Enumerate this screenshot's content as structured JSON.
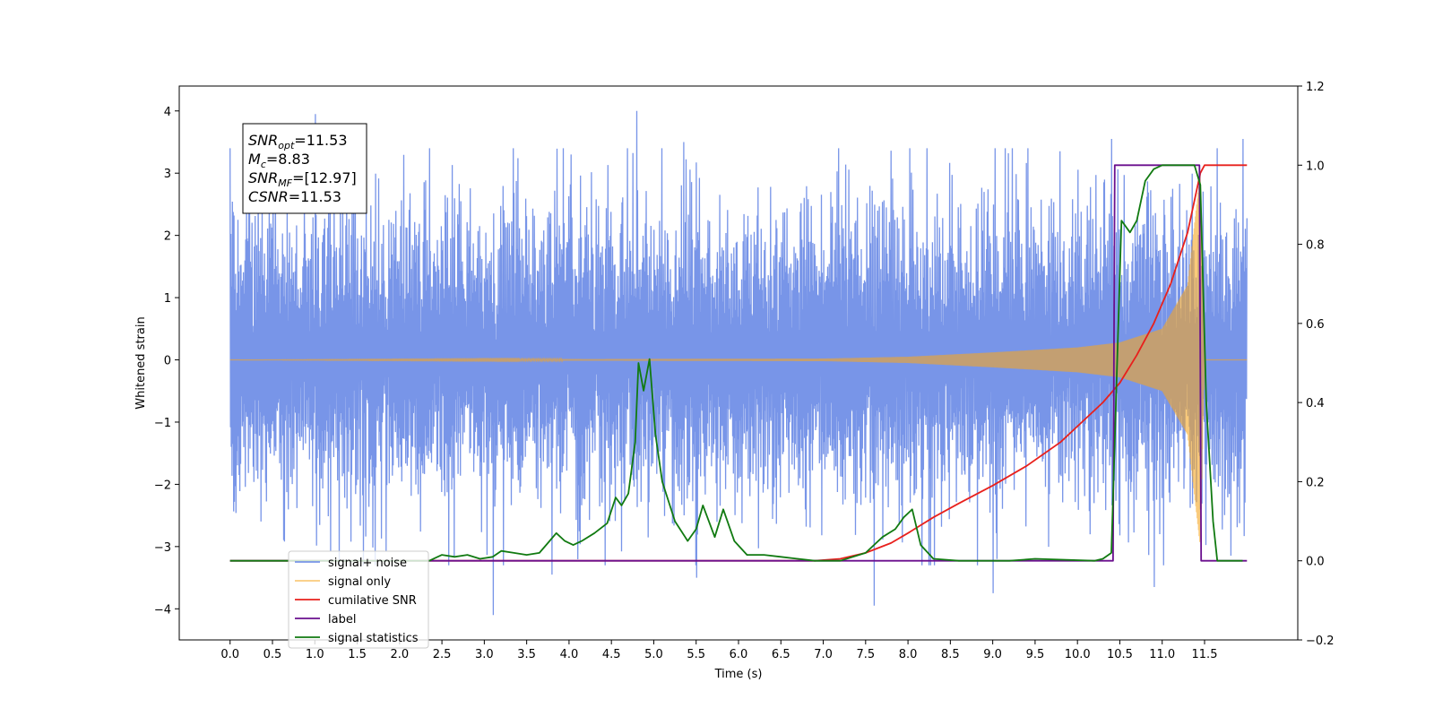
{
  "chart_data": {
    "type": "line",
    "title": "",
    "xlabel": "Time (s)",
    "ylabel": "Whitened strain",
    "xlim": [
      -0.6,
      12.6
    ],
    "ylim": [
      -4.5,
      4.4
    ],
    "y2lim": [
      -0.2,
      1.2
    ],
    "x_ticks": [
      0.0,
      0.5,
      1.0,
      1.5,
      2.0,
      2.5,
      3.0,
      3.5,
      4.0,
      4.5,
      5.0,
      5.5,
      6.0,
      6.5,
      7.0,
      7.5,
      8.0,
      8.5,
      9.0,
      9.5,
      10.0,
      10.5,
      11.0,
      11.5
    ],
    "x_tick_labels": [
      "0.0",
      "0.5",
      "1.0",
      "1.5",
      "2.0",
      "2.5",
      "3.0",
      "3.5",
      "4.0",
      "4.5",
      "5.0",
      "5.5",
      "6.0",
      "6.5",
      "7.0",
      "7.5",
      "8.0",
      "8.5",
      "9.0",
      "9.5",
      "10.0",
      "10.5",
      "11.0",
      "11.5"
    ],
    "y_ticks": [
      -4,
      -3,
      -2,
      -1,
      0,
      1,
      2,
      3,
      4
    ],
    "y_tick_labels": [
      "−4",
      "−3",
      "−2",
      "−1",
      "0",
      "1",
      "2",
      "3",
      "4"
    ],
    "y2_ticks": [
      -0.2,
      0.0,
      0.2,
      0.4,
      0.6,
      0.8,
      1.0,
      1.2
    ],
    "y2_tick_labels": [
      "−0.2",
      "0.0",
      "0.2",
      "0.4",
      "0.6",
      "0.8",
      "1.0",
      "1.2"
    ],
    "grid": false,
    "legend_position": "bottom-left",
    "annotation": {
      "lines": [
        {
          "main": "SNR",
          "sub": "opt",
          "value": "=11.53"
        },
        {
          "main": "M",
          "sub": "c",
          "value": "=8.83"
        },
        {
          "main": "SNR",
          "sub": "MF",
          "value": "=[12.97]"
        },
        {
          "main": "CSNR",
          "sub": "",
          "value": "=11.53"
        }
      ]
    },
    "series": [
      {
        "name": "signal+ noise",
        "color": "#7895e8",
        "axis": "left",
        "kind": "noise",
        "x_range": [
          0.0,
          12.0
        ],
        "envelope_positive": 2.4,
        "envelope_negative": -2.0,
        "peaks": [
          {
            "x": 1.0,
            "y": 3.95
          },
          {
            "x": 4.8,
            "y": 4.0
          },
          {
            "x": 5.35,
            "y": 3.5
          },
          {
            "x": 11.95,
            "y": 3.55
          },
          {
            "x": 10.4,
            "y": 3.55
          },
          {
            "x": 3.1,
            "y": -4.1
          },
          {
            "x": 7.6,
            "y": -3.95
          },
          {
            "x": 9.0,
            "y": -3.75
          },
          {
            "x": 10.9,
            "y": -3.65
          },
          {
            "x": 5.5,
            "y": -3.5
          },
          {
            "x": 3.8,
            "y": -3.45
          }
        ]
      },
      {
        "name": "signal only",
        "color": "#f5a623",
        "axis": "left",
        "kind": "chirp",
        "x_range": [
          0.0,
          12.0
        ],
        "merger_x": 11.45,
        "chirp_envelope": [
          [
            0.0,
            0.0
          ],
          [
            7.0,
            0.02
          ],
          [
            8.0,
            0.05
          ],
          [
            9.0,
            0.12
          ],
          [
            10.0,
            0.2
          ],
          [
            10.5,
            0.28
          ],
          [
            11.0,
            0.5
          ],
          [
            11.3,
            1.2
          ],
          [
            11.45,
            3.0
          ],
          [
            11.5,
            0.0
          ],
          [
            12.0,
            0.0
          ]
        ]
      },
      {
        "name": "cumilative SNR",
        "color": "#e8201c",
        "axis": "right",
        "x": [
          0.0,
          6.9,
          7.2,
          7.5,
          7.8,
          8.0,
          8.3,
          8.6,
          9.0,
          9.4,
          9.8,
          10.0,
          10.3,
          10.5,
          10.7,
          10.9,
          11.1,
          11.3,
          11.45,
          11.5,
          12.0
        ],
        "values": [
          0.0,
          0.0,
          0.005,
          0.02,
          0.045,
          0.07,
          0.11,
          0.145,
          0.19,
          0.24,
          0.3,
          0.34,
          0.4,
          0.45,
          0.52,
          0.6,
          0.7,
          0.83,
          0.98,
          1.0,
          1.0
        ]
      },
      {
        "name": "label",
        "color": "#6a0f8e",
        "axis": "right",
        "x": [
          0.0,
          10.42,
          10.44,
          11.44,
          11.46,
          12.0
        ],
        "values": [
          0.0,
          0.0,
          1.0,
          1.0,
          0.0,
          0.0
        ]
      },
      {
        "name": "signal statistics",
        "color": "#117a11",
        "axis": "right",
        "x": [
          0.0,
          2.35,
          2.5,
          2.65,
          2.8,
          2.95,
          3.1,
          3.2,
          3.35,
          3.5,
          3.65,
          3.75,
          3.85,
          3.95,
          4.05,
          4.15,
          4.3,
          4.45,
          4.55,
          4.62,
          4.7,
          4.78,
          4.82,
          4.88,
          4.95,
          5.02,
          5.1,
          5.25,
          5.4,
          5.5,
          5.58,
          5.72,
          5.82,
          5.95,
          6.1,
          6.3,
          6.5,
          6.7,
          6.9,
          7.2,
          7.5,
          7.7,
          7.85,
          7.95,
          8.05,
          8.15,
          8.3,
          8.6,
          9.2,
          9.5,
          10.2,
          10.3,
          10.4,
          10.52,
          10.62,
          10.7,
          10.8,
          10.9,
          11.0,
          11.2,
          11.38,
          11.45,
          11.52,
          11.6,
          11.65,
          11.95
        ],
        "values": [
          0.0,
          0.0,
          0.015,
          0.01,
          0.015,
          0.005,
          0.01,
          0.025,
          0.02,
          0.015,
          0.02,
          0.045,
          0.07,
          0.05,
          0.04,
          0.05,
          0.07,
          0.095,
          0.16,
          0.14,
          0.17,
          0.3,
          0.5,
          0.43,
          0.51,
          0.32,
          0.2,
          0.1,
          0.05,
          0.08,
          0.14,
          0.06,
          0.13,
          0.05,
          0.015,
          0.015,
          0.01,
          0.005,
          0.0,
          0.0,
          0.02,
          0.06,
          0.08,
          0.11,
          0.13,
          0.04,
          0.005,
          0.0,
          0.0,
          0.005,
          0.0,
          0.005,
          0.02,
          0.86,
          0.83,
          0.86,
          0.96,
          0.99,
          1.0,
          1.0,
          1.0,
          0.95,
          0.4,
          0.1,
          0.0,
          0.0
        ]
      }
    ]
  }
}
